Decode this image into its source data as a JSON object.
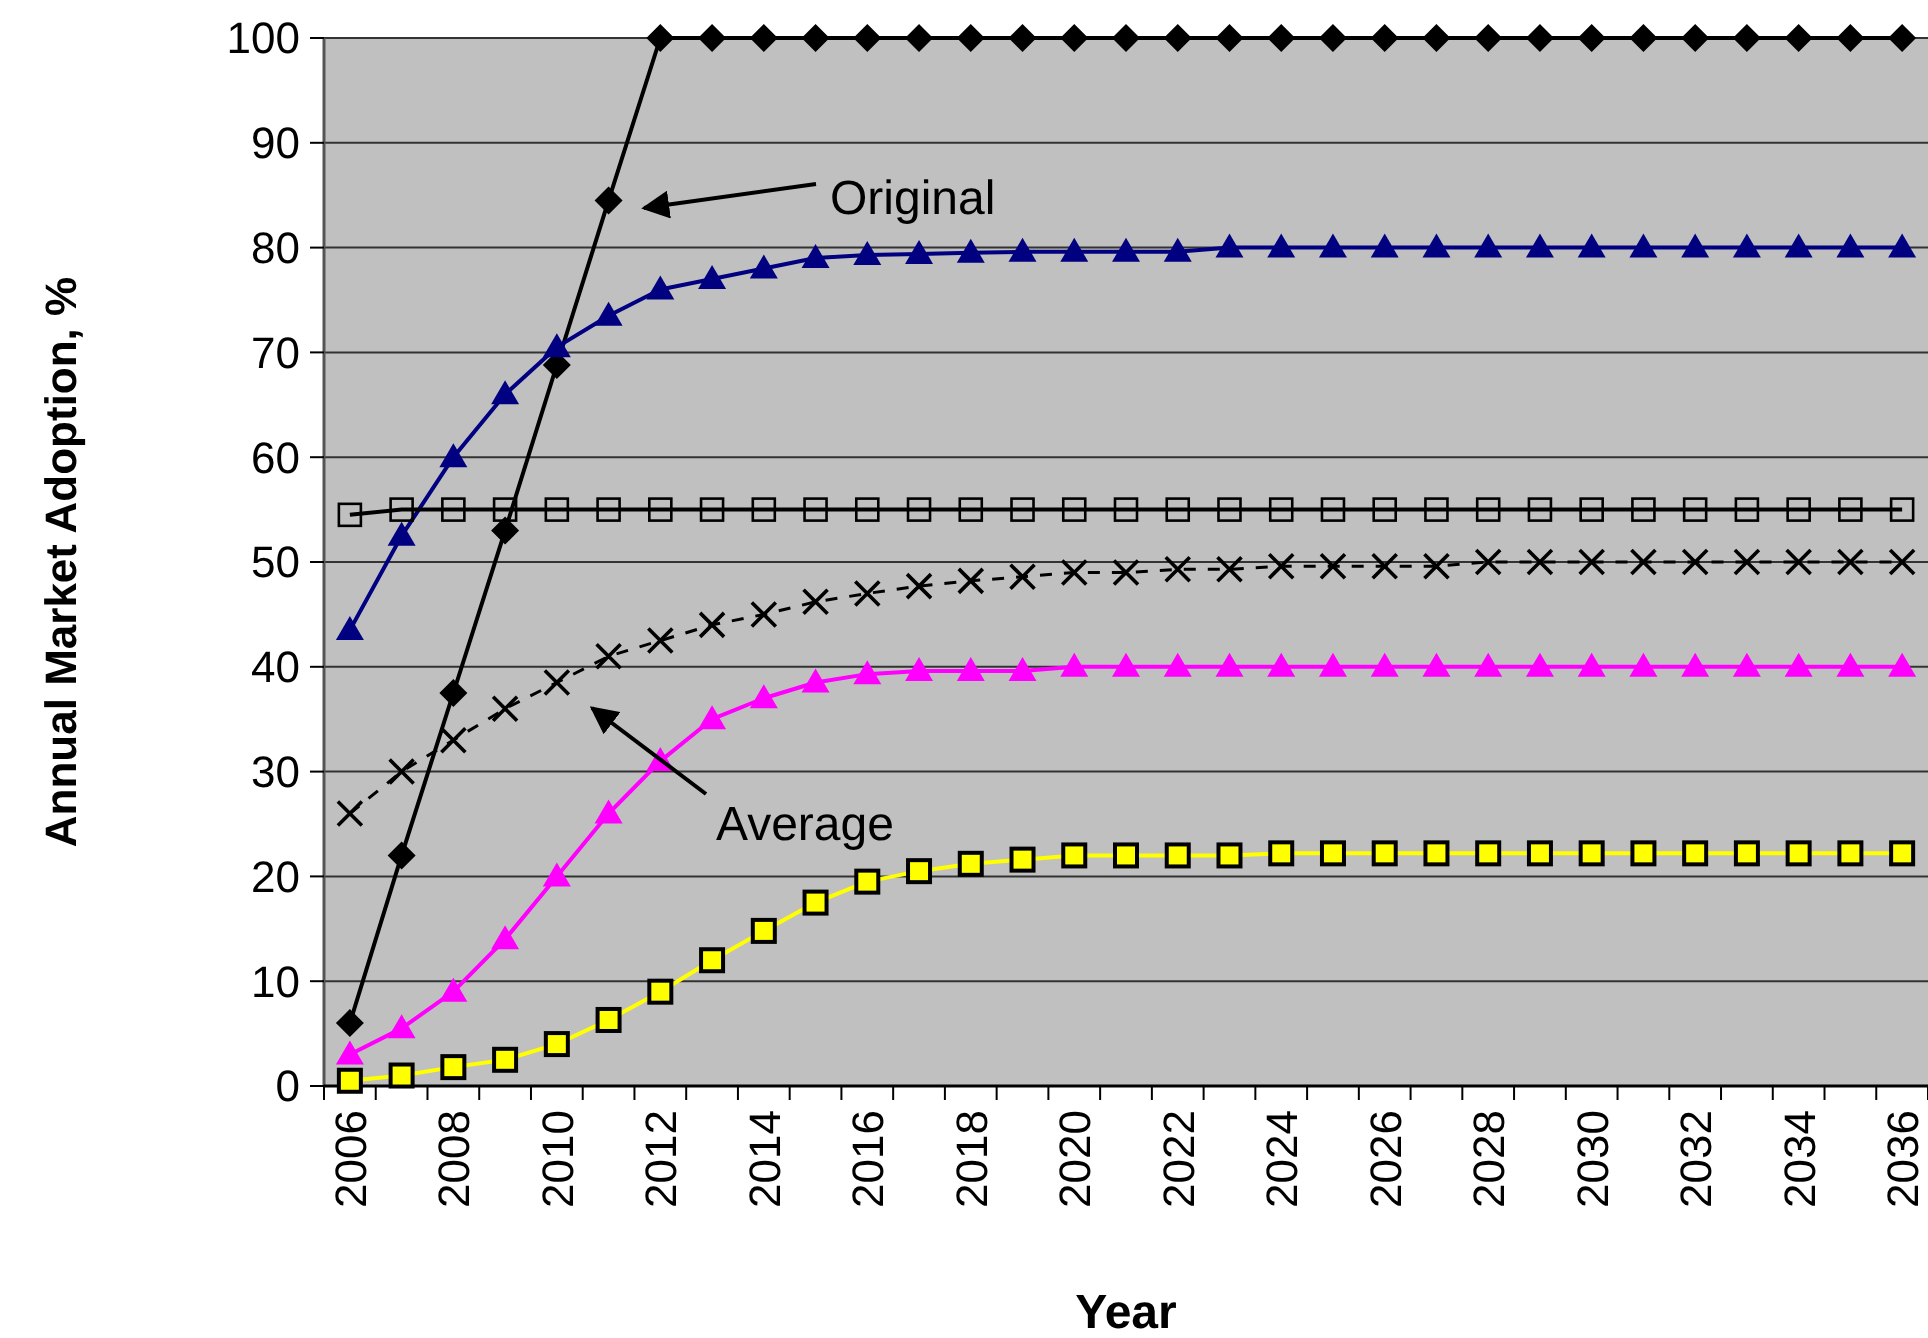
{
  "chart_data": {
    "type": "line",
    "xlabel": "Year",
    "ylabel": "Annual Market Adoption, %",
    "categories": [
      "2006",
      null,
      "2008",
      null,
      "2010",
      null,
      "2012",
      null,
      "2014",
      null,
      "2016",
      null,
      "2018",
      null,
      "2020",
      null,
      "2022",
      null,
      "2024",
      null,
      "2026",
      null,
      "2028",
      null,
      "2030",
      null,
      "2032",
      null,
      "2034",
      null,
      "2036"
    ],
    "series": [
      {
        "color": "#000000",
        "marker": "diamond",
        "line_style": "solid",
        "values": [
          6,
          22,
          37.5,
          53,
          68.8,
          84.5,
          100,
          100,
          100,
          100,
          100,
          100,
          100,
          100,
          100,
          100,
          100,
          100,
          100,
          100,
          100,
          100,
          100,
          100,
          100,
          100,
          100,
          100,
          100,
          100,
          100
        ]
      },
      {
        "color": "#000080",
        "marker": "triangle",
        "line_style": "solid",
        "values": [
          43.5,
          52.5,
          60,
          66,
          70.5,
          73.5,
          76,
          77,
          78,
          79,
          79.3,
          79.4,
          79.5,
          79.6,
          79.6,
          79.6,
          79.6,
          80,
          80,
          80,
          80,
          80,
          80,
          80,
          80,
          80,
          80,
          80,
          80,
          80,
          80
        ]
      },
      {
        "color": "#000000",
        "marker": "square",
        "line_style": "solid",
        "values": [
          54.5,
          55,
          55,
          55,
          55,
          55,
          55,
          55,
          55,
          55,
          55,
          55,
          55,
          55,
          55,
          55,
          55,
          55,
          55,
          55,
          55,
          55,
          55,
          55,
          55,
          55,
          55,
          55,
          55,
          55,
          55
        ]
      },
      {
        "color": "#000000",
        "marker": "cross",
        "line_style": "dashed",
        "values": [
          26,
          30,
          33,
          36,
          38.5,
          41,
          42.5,
          44,
          45,
          46.2,
          47,
          47.7,
          48.2,
          48.6,
          49,
          49,
          49.3,
          49.3,
          49.6,
          49.6,
          49.6,
          49.6,
          50,
          50,
          50,
          50,
          50,
          50,
          50,
          50,
          50
        ]
      },
      {
        "color": "#ff00ff",
        "marker": "triangle",
        "line_style": "solid",
        "values": [
          3,
          5.5,
          9,
          14,
          20,
          26,
          31,
          35,
          37,
          38.5,
          39.3,
          39.6,
          39.6,
          39.6,
          40,
          40,
          40,
          40,
          40,
          40,
          40,
          40,
          40,
          40,
          40,
          40,
          40,
          40,
          40,
          40,
          40
        ]
      },
      {
        "color": "#ffff00",
        "marker": "square",
        "line_style": "solid",
        "values": [
          0.5,
          1,
          1.8,
          2.5,
          4,
          6.3,
          9,
          12,
          14.8,
          17.5,
          19.5,
          20.5,
          21.2,
          21.6,
          22,
          22,
          22,
          22,
          22.2,
          22.2,
          22.2,
          22.2,
          22.2,
          22.2,
          22.2,
          22.2,
          22.2,
          22.2,
          22.2,
          22.2,
          22.2
        ]
      }
    ],
    "ylim": [
      0,
      100
    ],
    "yticks": [
      0,
      10,
      20,
      30,
      40,
      50,
      60,
      70,
      80,
      90,
      100
    ],
    "grid": "y",
    "annotations": [
      "Original",
      "Average"
    ]
  }
}
